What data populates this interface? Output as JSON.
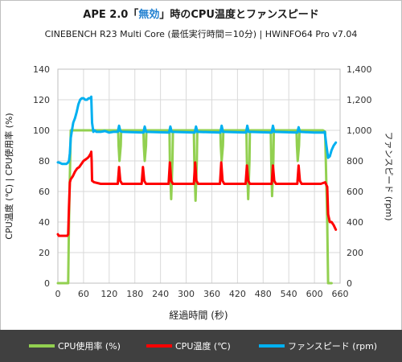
{
  "chart_data": {
    "type": "line",
    "title_prefix": "APE 2.0「",
    "title_highlight": "無効",
    "title_suffix": "」時のCPU温度とファンスピード",
    "subtitle": "CINEBENCH R23 Multi Core (最低実行時間＝10分) | HWiNFO64  Pro v7.04",
    "xlabel": "経過時間 (秒)",
    "ylabel_left": "CPU温度 (℃) | CPU使用率 (%)",
    "ylabel_right": "ファンスピード (rpm)",
    "xlim": [
      0,
      660
    ],
    "ylim_left": [
      0,
      140
    ],
    "ylim_right": [
      0,
      1400
    ],
    "x_ticks": [
      "0",
      "60",
      "120",
      "180",
      "240",
      "300",
      "360",
      "420",
      "480",
      "540",
      "600",
      "660"
    ],
    "y_ticks_left": [
      "0",
      "20",
      "40",
      "60",
      "80",
      "100",
      "120",
      "140"
    ],
    "y_ticks_right": [
      "0",
      "200",
      "400",
      "600",
      "800",
      "1,000",
      "1,200",
      "1,400"
    ],
    "grid": true,
    "colors": {
      "title_highlight": "#1f7fd0",
      "usage": "#92d050",
      "temp": "#ff0000",
      "fan": "#00b0f0"
    },
    "series": [
      {
        "name": "CPU使用率 (%)",
        "axis": "left",
        "color": "#92d050",
        "x": [
          0,
          24,
          26,
          30,
          78,
          80,
          141,
          142,
          144,
          147,
          148,
          200,
          201,
          203,
          206,
          207,
          261,
          262,
          265,
          268,
          269,
          318,
          319,
          322,
          325,
          326,
          380,
          381,
          383,
          386,
          387,
          441,
          442,
          445,
          448,
          449,
          498,
          499,
          501,
          504,
          505,
          558,
          559,
          561,
          564,
          565,
          620,
          625,
          630,
          632,
          640
        ],
        "y": [
          0,
          0,
          40,
          100,
          100,
          100,
          100,
          90,
          80,
          90,
          100,
          100,
          90,
          80,
          90,
          100,
          100,
          80,
          55,
          80,
          100,
          100,
          80,
          54,
          80,
          100,
          100,
          90,
          80,
          90,
          100,
          100,
          80,
          55,
          80,
          100,
          100,
          80,
          57,
          80,
          100,
          100,
          90,
          80,
          90,
          100,
          100,
          99,
          40,
          0,
          0
        ]
      },
      {
        "name": "CPU温度 (℃)",
        "axis": "left",
        "color": "#ff0000",
        "x": [
          0,
          2,
          22,
          24,
          26,
          28,
          30,
          35,
          40,
          45,
          50,
          55,
          60,
          65,
          70,
          73,
          75,
          77,
          78,
          79,
          80,
          85,
          100,
          120,
          135,
          140,
          143,
          146,
          150,
          180,
          196,
          199,
          202,
          206,
          240,
          259,
          262,
          265,
          269,
          300,
          318,
          321,
          324,
          328,
          360,
          379,
          382,
          385,
          389,
          420,
          439,
          442,
          445,
          449,
          480,
          500,
          503,
          506,
          510,
          540,
          560,
          563,
          566,
          570,
          600,
          615,
          625,
          630,
          632,
          636,
          640,
          645,
          650
        ],
        "y": [
          32,
          31,
          31,
          32,
          50,
          66,
          68,
          70,
          73,
          75,
          76,
          78,
          80,
          81,
          82,
          83,
          84,
          85,
          86,
          80,
          67,
          66,
          65,
          65,
          65,
          65,
          76,
          67,
          65,
          65,
          65,
          76,
          67,
          65,
          65,
          65,
          79,
          67,
          65,
          65,
          65,
          79,
          67,
          65,
          65,
          65,
          79,
          67,
          65,
          65,
          65,
          77,
          67,
          65,
          65,
          65,
          77,
          67,
          65,
          65,
          65,
          77,
          67,
          65,
          65,
          65,
          66,
          63,
          45,
          40,
          40,
          38,
          35
        ]
      },
      {
        "name": "ファンスピード (rpm)",
        "axis": "right",
        "color": "#00b0f0",
        "x": [
          0,
          2,
          10,
          20,
          24,
          26,
          28,
          30,
          33,
          36,
          40,
          44,
          48,
          52,
          56,
          60,
          64,
          68,
          72,
          76,
          78,
          80,
          83,
          86,
          90,
          100,
          110,
          120,
          130,
          140,
          143,
          146,
          150,
          200,
          203,
          206,
          260,
          263,
          266,
          320,
          323,
          326,
          380,
          383,
          386,
          440,
          443,
          446,
          500,
          503,
          506,
          560,
          563,
          566,
          600,
          620,
          624,
          628,
          632,
          636,
          640,
          645,
          650
        ],
        "y": [
          790,
          790,
          780,
          780,
          790,
          800,
          850,
          950,
          1000,
          1050,
          1080,
          1120,
          1170,
          1200,
          1210,
          1210,
          1200,
          1200,
          1210,
          1210,
          1220,
          1050,
          990,
          1000,
          990,
          990,
          995,
          985,
          990,
          990,
          1030,
          995,
          990,
          985,
          1025,
          990,
          985,
          1025,
          990,
          985,
          1025,
          990,
          985,
          1030,
          990,
          985,
          1030,
          990,
          985,
          1030,
          990,
          985,
          1020,
          990,
          985,
          985,
          990,
          900,
          820,
          830,
          870,
          900,
          920
        ]
      }
    ]
  }
}
